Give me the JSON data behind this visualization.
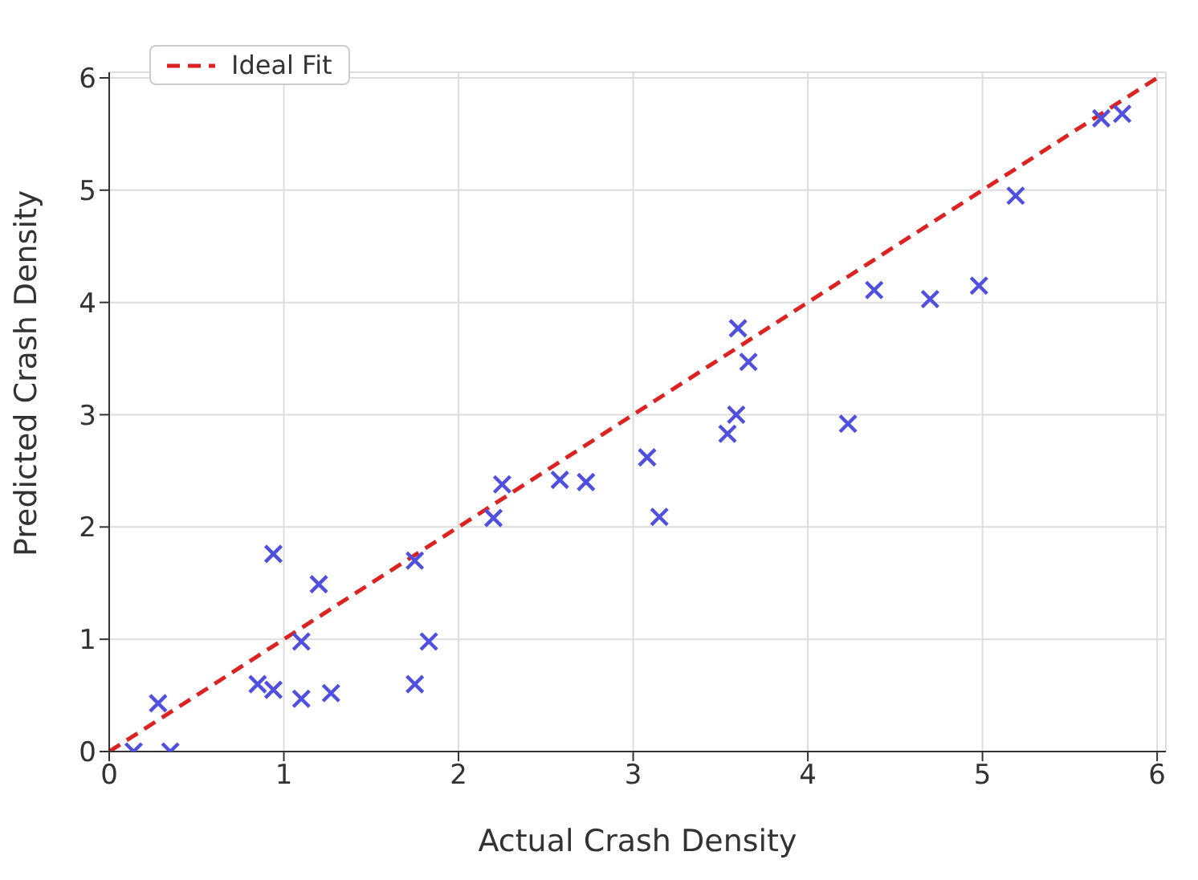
{
  "chart_data": {
    "type": "scatter",
    "xlabel": "Actual Crash Density",
    "ylabel": "Predicted Crash Density",
    "xlim": [
      0,
      6.05
    ],
    "ylim": [
      0,
      6.05
    ],
    "xticks": [
      0,
      1,
      2,
      3,
      4,
      5,
      6
    ],
    "yticks": [
      0,
      1,
      2,
      3,
      4,
      5,
      6
    ],
    "grid": true,
    "legend": "top left",
    "series": [
      {
        "color": "#4f4fe0",
        "marker": "cross",
        "x": [
          0.14,
          0.35,
          0.28,
          0.85,
          0.94,
          1.1,
          1.27,
          0.94,
          1.1,
          1.2,
          1.75,
          1.75,
          1.83,
          2.2,
          2.25,
          2.58,
          2.73,
          3.08,
          3.15,
          3.54,
          3.59,
          3.6,
          3.66,
          4.23,
          4.38,
          4.7,
          4.98,
          5.19,
          5.68,
          5.8
        ],
        "values": [
          0,
          0,
          0.43,
          0.6,
          0.55,
          0.47,
          0.52,
          1.76,
          0.98,
          1.49,
          1.7,
          0.6,
          0.98,
          2.08,
          2.38,
          2.42,
          2.4,
          2.62,
          2.09,
          2.83,
          3.0,
          3.77,
          3.47,
          2.92,
          4.11,
          4.03,
          4.15,
          4.95,
          5.64,
          5.68
        ]
      },
      {
        "type": "line",
        "name": "Ideal Fit",
        "color": "#dd2222",
        "line_style": "dashed",
        "marker": "none",
        "x": [
          0,
          6
        ],
        "values": [
          0,
          6
        ]
      }
    ]
  }
}
